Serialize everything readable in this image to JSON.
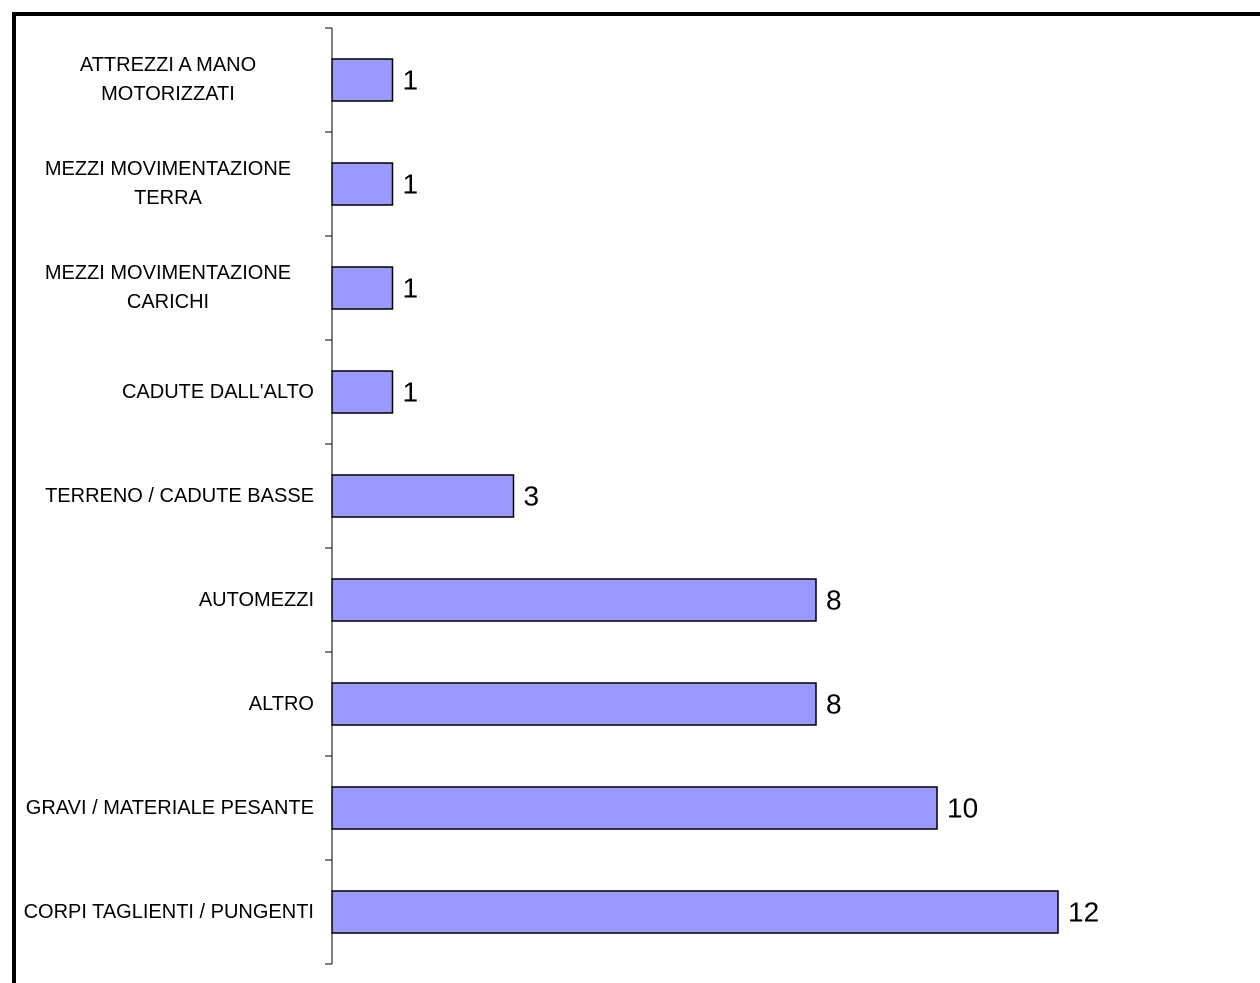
{
  "chart_data": {
    "type": "bar",
    "orientation": "horizontal",
    "categories": [
      "ATTREZZI A MANO MOTORIZZATI",
      "MEZZI MOVIMENTAZIONE TERRA",
      "MEZZI MOVIMENTAZIONE CARICHI",
      "CADUTE DALL'ALTO",
      "TERRENO / CADUTE BASSE",
      "AUTOMEZZI",
      "ALTRO",
      "GRAVI / MATERIALE PESANTE",
      "CORPI TAGLIENTI / PUNGENTI"
    ],
    "values": [
      1,
      1,
      1,
      1,
      3,
      8,
      8,
      10,
      12
    ],
    "color": "#9999ff"
  }
}
